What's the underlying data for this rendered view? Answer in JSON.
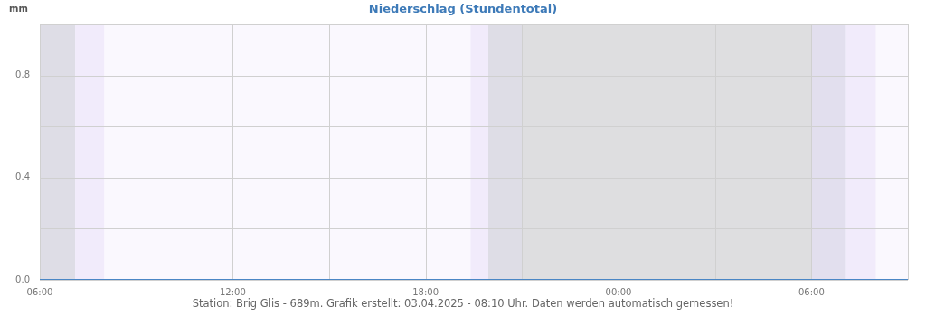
{
  "chart_data": {
    "type": "line",
    "title": "Niederschlag (Stundentotal)",
    "ylabel": "mm",
    "annotations": [
      "Station: Brig Glis - 689m. Grafik erstellt: 03.04.2025 - 08:10 Uhr. Daten werden automatisch gemessen!"
    ],
    "x": [
      "2025-04-02T06:00",
      "2025-04-02T07:00",
      "2025-04-02T08:00",
      "2025-04-02T09:00",
      "2025-04-02T10:00",
      "2025-04-02T11:00",
      "2025-04-02T12:00",
      "2025-04-02T13:00",
      "2025-04-02T14:00",
      "2025-04-02T15:00",
      "2025-04-02T16:00",
      "2025-04-02T17:00",
      "2025-04-02T18:00",
      "2025-04-02T19:00",
      "2025-04-02T20:00",
      "2025-04-02T21:00",
      "2025-04-02T22:00",
      "2025-04-02T23:00",
      "2025-04-03T00:00",
      "2025-04-03T01:00",
      "2025-04-03T02:00",
      "2025-04-03T03:00",
      "2025-04-03T04:00",
      "2025-04-03T05:00",
      "2025-04-03T06:00",
      "2025-04-03T07:00",
      "2025-04-03T08:00",
      "2025-04-03T09:00"
    ],
    "series": [
      {
        "color": "#4a86c5",
        "values": [
          0,
          0,
          0,
          0,
          0,
          0,
          0,
          0,
          0,
          0,
          0,
          0,
          0,
          0,
          0,
          0,
          0,
          0,
          0,
          0,
          0,
          0,
          0,
          0,
          0,
          0,
          0,
          0
        ]
      }
    ],
    "xlim": [
      "2025-04-02T06:00",
      "2025-04-03T09:00"
    ],
    "xticks": [
      {
        "value": "2025-04-02T06:00",
        "label": "06:00"
      },
      {
        "value": "2025-04-02T09:00",
        "label": null
      },
      {
        "value": "2025-04-02T12:00",
        "label": "12:00"
      },
      {
        "value": "2025-04-02T15:00",
        "label": null
      },
      {
        "value": "2025-04-02T18:00",
        "label": "18:00"
      },
      {
        "value": "2025-04-02T21:00",
        "label": null
      },
      {
        "value": "2025-04-03T00:00",
        "label": "00:00"
      },
      {
        "value": "2025-04-03T03:00",
        "label": null
      },
      {
        "value": "2025-04-03T06:00",
        "label": "06:00"
      },
      {
        "value": "2025-04-03T09:00",
        "label": null
      }
    ],
    "ylim": [
      0,
      1
    ],
    "yticks": [
      {
        "value": 0,
        "label": "0.0"
      },
      {
        "value": 0.2,
        "label": null
      },
      {
        "value": 0.4,
        "label": "0.4"
      },
      {
        "value": 0.6,
        "label": null
      },
      {
        "value": 0.8,
        "label": "0.8"
      },
      {
        "value": 1,
        "label": null
      }
    ],
    "bands": [
      {
        "axis": "x",
        "from": "2025-04-02T06:00",
        "to": "2025-04-02T07:06",
        "color": "#dedde6"
      },
      {
        "axis": "x",
        "from": "2025-04-02T07:06",
        "to": "2025-04-02T08:00",
        "color": "#f1ebfb"
      },
      {
        "axis": "x",
        "from": "2025-04-02T19:24",
        "to": "2025-04-02T19:57",
        "color": "#f1ebfb"
      },
      {
        "axis": "x",
        "from": "2025-04-02T19:57",
        "to": "2025-04-02T21:00",
        "color": "#dedde6"
      },
      {
        "axis": "x",
        "from": "2025-04-02T21:00",
        "to": "2025-04-03T06:00",
        "color": "#dedee0"
      },
      {
        "axis": "x",
        "from": "2025-04-03T06:00",
        "to": "2025-04-03T07:03",
        "color": "#e2dfee"
      },
      {
        "axis": "x",
        "from": "2025-04-03T07:03",
        "to": "2025-04-03T08:00",
        "color": "#f1ebfb"
      }
    ],
    "grid": true,
    "legend": false,
    "marker": "none",
    "line_style": "solid"
  }
}
